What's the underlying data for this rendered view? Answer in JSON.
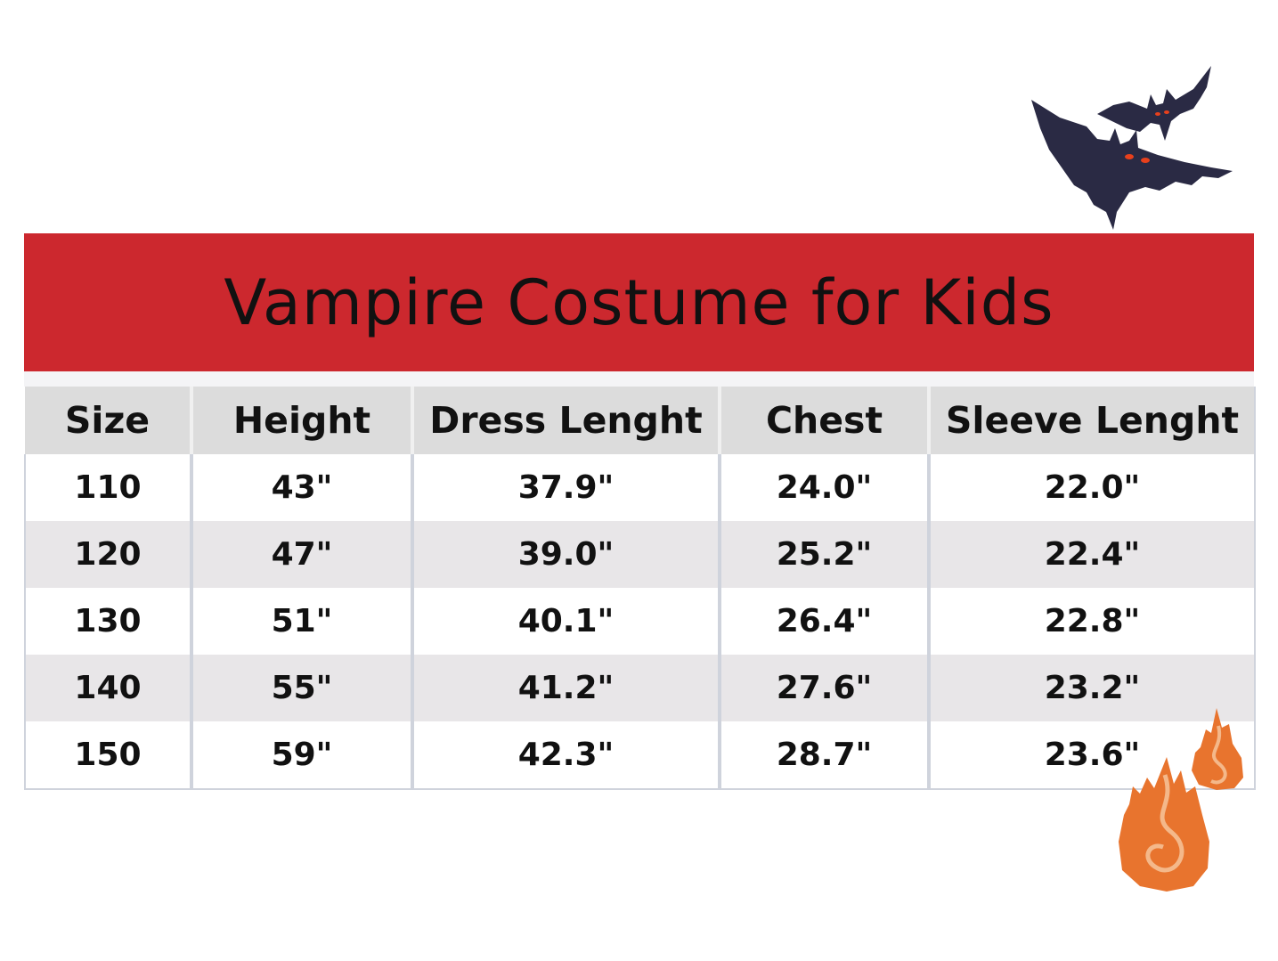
{
  "title": "Vampire Costume for Kids",
  "colors": {
    "banner": "#cc282e",
    "header_bg": "#dcdcdc",
    "alt_row": "#e8e6e8",
    "bat": "#2a2a44",
    "bat_eyes": "#e8401c",
    "flame": "#e8742e"
  },
  "decorations": [
    "bat-icon",
    "flame-icon"
  ],
  "table": {
    "headers": [
      "Size",
      "Height",
      "Dress Lenght",
      "Chest",
      "Sleeve Lenght"
    ],
    "rows": [
      [
        "110",
        "43\"",
        "37.9\"",
        "24.0\"",
        "22.0\""
      ],
      [
        "120",
        "47\"",
        "39.0\"",
        "25.2\"",
        "22.4\""
      ],
      [
        "130",
        "51\"",
        "40.1\"",
        "26.4\"",
        "22.8\""
      ],
      [
        "140",
        "55\"",
        "41.2\"",
        "27.6\"",
        "23.2\""
      ],
      [
        "150",
        "59\"",
        "42.3\"",
        "28.7\"",
        "23.6\""
      ]
    ]
  }
}
